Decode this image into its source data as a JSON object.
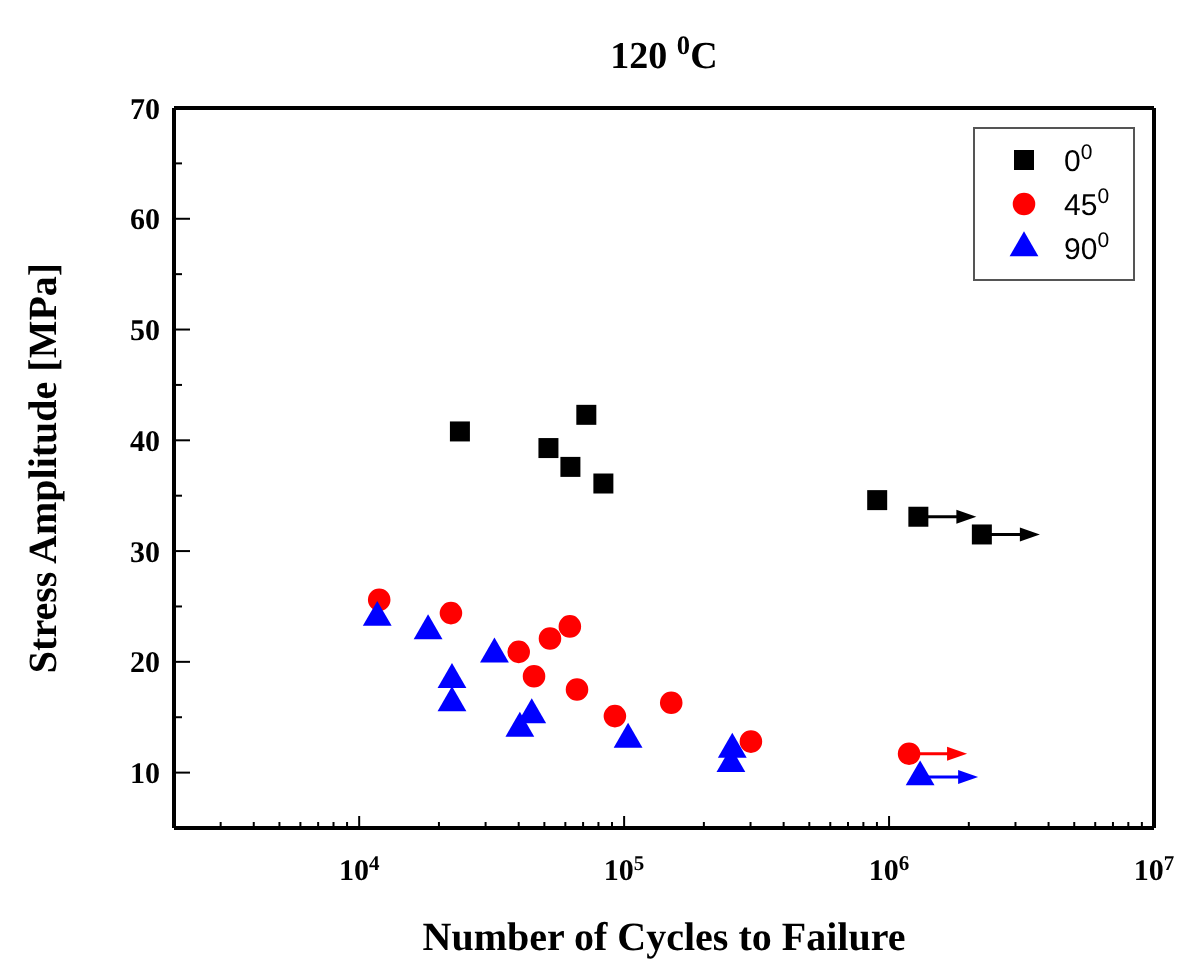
{
  "chart_data": {
    "type": "scatter",
    "title": "120 $^{0}$C",
    "xlabel": "Number of Cycles to Failure",
    "ylabel": "Stress Amplitude [MPa]",
    "log": "x",
    "xlim": [
      2000,
      10000000
    ],
    "xticks": [
      {
        "value": 10000,
        "label": "10$^{4}$"
      },
      {
        "value": 100000,
        "label": "10$^{5}$"
      },
      {
        "value": 1000000,
        "label": "10$^{6}$"
      },
      {
        "value": 10000000,
        "label": "10$^{7}$"
      }
    ],
    "ylim": [
      5,
      70
    ],
    "yticks": [
      10,
      20,
      30,
      40,
      50,
      60,
      70
    ],
    "grid": false,
    "legend": "top right",
    "series": [
      {
        "name": "0$^{0}$",
        "color": "#000000",
        "marker": "square",
        "x": [
          24000,
          51800,
          62700,
          72000,
          83500,
          902000,
          1290000,
          2240000
        ],
        "values": [
          40.8,
          39.3,
          37.6,
          42.3,
          36.1,
          34.6,
          33.1,
          31.5
        ]
      },
      {
        "name": "45$^{0}$",
        "color": "#ff0000",
        "marker": "circle",
        "x": [
          11900,
          22200,
          40000,
          45700,
          52500,
          62400,
          66400,
          92300,
          150600,
          301000,
          1190000
        ],
        "values": [
          25.6,
          24.4,
          20.9,
          18.7,
          22.1,
          23.2,
          17.5,
          15.1,
          16.3,
          12.8,
          11.7
        ]
      },
      {
        "name": "90$^{0}$",
        "color": "#0000ff",
        "marker": "triangle",
        "x": [
          11700,
          18200,
          32400,
          22400,
          22400,
          40400,
          44800,
          103500,
          256000,
          253000,
          1310000
        ],
        "values": [
          24.0,
          22.8,
          20.7,
          18.4,
          16.3,
          14.0,
          15.2,
          13.0,
          12.1,
          10.8,
          9.6
        ]
      }
    ]
  }
}
